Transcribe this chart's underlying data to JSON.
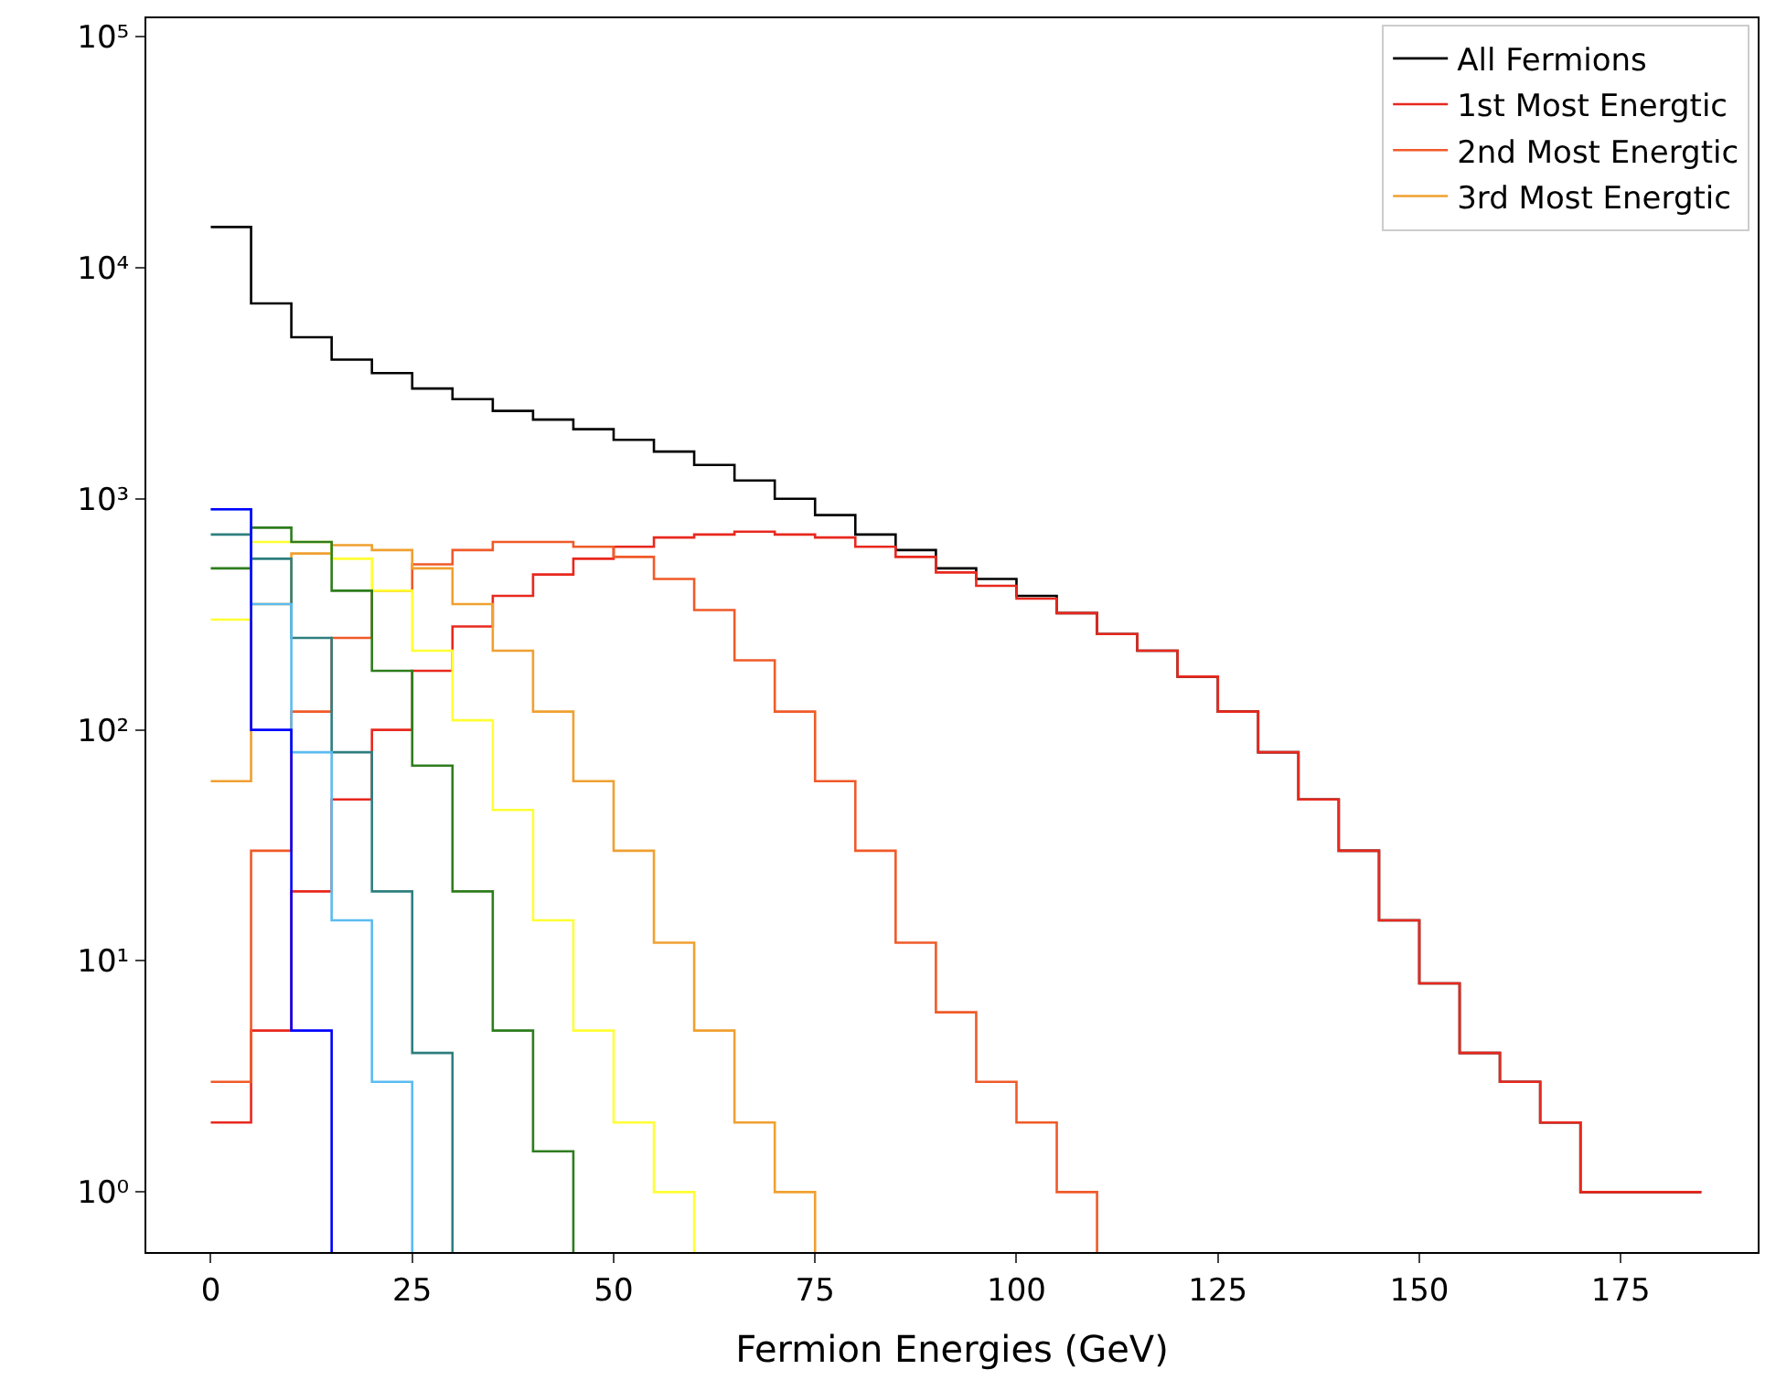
{
  "chart_data": {
    "type": "histogram",
    "xlabel": "Fermion Energies (GeV)",
    "bins": [
      0,
      5,
      10,
      15,
      20,
      25,
      30,
      35,
      40,
      45,
      50,
      55,
      60,
      65,
      70,
      75,
      80,
      85,
      90,
      95,
      100,
      105,
      110,
      115,
      120,
      125,
      130,
      135,
      140,
      145,
      150,
      155,
      160,
      165,
      170,
      175,
      180,
      185
    ],
    "series": [
      {
        "name": "All Fermions",
        "color": "#000000",
        "values": [
          15000,
          7000,
          5000,
          4000,
          3500,
          3000,
          2700,
          2400,
          2200,
          2000,
          1800,
          1600,
          1400,
          1200,
          1000,
          850,
          700,
          600,
          500,
          450,
          380,
          320,
          260,
          220,
          170,
          120,
          80,
          50,
          30,
          15,
          8,
          4,
          3,
          2,
          1,
          1,
          1
        ]
      },
      {
        "name": "1st Most Energtic",
        "color": "#e8281e",
        "values": [
          2,
          5,
          20,
          50,
          100,
          180,
          280,
          380,
          470,
          550,
          620,
          680,
          700,
          720,
          700,
          680,
          620,
          560,
          480,
          420,
          370,
          320,
          260,
          220,
          170,
          120,
          80,
          50,
          30,
          15,
          8,
          4,
          3,
          2,
          1,
          1,
          1
        ]
      },
      {
        "name": "2nd Most Energtic",
        "color": "#f05a28",
        "bins": [
          0,
          5,
          10,
          15,
          20,
          25,
          30,
          35,
          40,
          45,
          50,
          55,
          60,
          65,
          70,
          75,
          80,
          85,
          90,
          95,
          100,
          105,
          110
        ],
        "values": [
          3,
          30,
          120,
          250,
          400,
          520,
          600,
          650,
          650,
          620,
          560,
          450,
          330,
          200,
          120,
          60,
          30,
          12,
          6,
          3,
          2,
          1
        ]
      },
      {
        "name": "3rd Most Energtic",
        "color": "#f0a030",
        "bins": [
          0,
          5,
          10,
          15,
          20,
          25,
          30,
          35,
          40,
          45,
          50,
          55,
          60,
          65,
          70,
          75
        ],
        "values": [
          60,
          350,
          580,
          630,
          600,
          500,
          350,
          220,
          120,
          60,
          30,
          12,
          5,
          2,
          1
        ]
      },
      {
        "color": "#ffff33",
        "bins": [
          0,
          5,
          10,
          15,
          20,
          25,
          30,
          35,
          40,
          45,
          50,
          55,
          60
        ],
        "values": [
          300,
          650,
          650,
          550,
          400,
          220,
          110,
          45,
          15,
          5,
          2,
          1
        ]
      },
      {
        "color": "#2e7d1e",
        "bins": [
          0,
          5,
          10,
          15,
          20,
          25,
          30,
          35,
          40,
          45
        ],
        "values": [
          500,
          750,
          650,
          400,
          180,
          70,
          20,
          5,
          1.5
        ]
      },
      {
        "color": "#2f7f7f",
        "bins": [
          0,
          5,
          10,
          15,
          20,
          25,
          30
        ],
        "values": [
          700,
          550,
          250,
          80,
          20,
          4
        ]
      },
      {
        "color": "#5bbcf0",
        "bins": [
          0,
          5,
          10,
          15,
          20,
          25
        ],
        "values": [
          900,
          350,
          80,
          15,
          3
        ]
      },
      {
        "color": "#0000ff",
        "bins": [
          0,
          5,
          10,
          15
        ],
        "values": [
          900,
          100,
          5
        ]
      }
    ],
    "log": "y",
    "xlim": [
      -8,
      192
    ],
    "xticks": [
      0,
      25,
      50,
      75,
      100,
      125,
      150,
      175
    ],
    "ylim": [
      0.55,
      120000
    ],
    "yticks": [
      {
        "value": 1,
        "label": "10⁰"
      },
      {
        "value": 10,
        "label": "10¹"
      },
      {
        "value": 100,
        "label": "10²"
      },
      {
        "value": 1000,
        "label": "10³"
      },
      {
        "value": 10000,
        "label": "10⁴"
      },
      {
        "value": 100000,
        "label": "10⁵"
      }
    ],
    "legend": "top right"
  }
}
